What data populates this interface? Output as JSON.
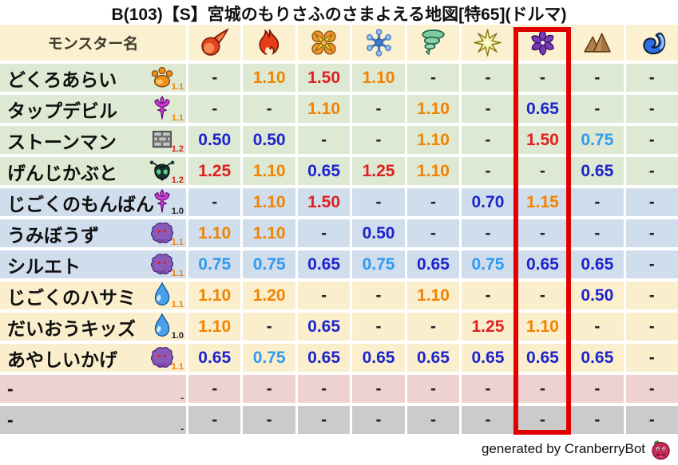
{
  "title": "B(103)【S】宮城のもりさふのさまよえる地図[特65](ドルマ)",
  "chart_data": {
    "type": "table",
    "title": "B(103)【S】宮城のもりさふのさまよえる地図[特65](ドルマ)",
    "header": {
      "monster_col_label": "モンスター名",
      "element_columns": [
        {
          "icon": "fireball-icon"
        },
        {
          "icon": "flame-icon"
        },
        {
          "icon": "burst-icon"
        },
        {
          "icon": "snowflake-icon"
        },
        {
          "icon": "tornado-icon"
        },
        {
          "icon": "starburst-icon"
        },
        {
          "icon": "pinwheel-icon"
        },
        {
          "icon": "mountain-icon"
        },
        {
          "icon": "wave-icon"
        }
      ],
      "highlighted_column_index": 6
    },
    "rows": [
      {
        "name": "どくろあらい",
        "icon": "paw-icon",
        "level": "1.1",
        "level_color": "orange",
        "bg": "green",
        "values": [
          {
            "v": "-",
            "c": "dash"
          },
          {
            "v": "1.10",
            "c": "orange"
          },
          {
            "v": "1.50",
            "c": "red"
          },
          {
            "v": "1.10",
            "c": "orange"
          },
          {
            "v": "-",
            "c": "dash"
          },
          {
            "v": "-",
            "c": "dash"
          },
          {
            "v": "-",
            "c": "dash"
          },
          {
            "v": "-",
            "c": "dash"
          },
          {
            "v": "-",
            "c": "dash"
          }
        ]
      },
      {
        "name": "タップデビル",
        "icon": "trident-icon",
        "level": "1.1",
        "level_color": "orange",
        "bg": "green",
        "values": [
          {
            "v": "-",
            "c": "dash"
          },
          {
            "v": "-",
            "c": "dash"
          },
          {
            "v": "1.10",
            "c": "orange"
          },
          {
            "v": "-",
            "c": "dash"
          },
          {
            "v": "1.10",
            "c": "orange"
          },
          {
            "v": "-",
            "c": "dash"
          },
          {
            "v": "0.65",
            "c": "blue"
          },
          {
            "v": "-",
            "c": "dash"
          },
          {
            "v": "-",
            "c": "dash"
          }
        ]
      },
      {
        "name": "ストーンマン",
        "icon": "brick-icon",
        "level": "1.2",
        "level_color": "red",
        "bg": "green",
        "values": [
          {
            "v": "0.50",
            "c": "blue"
          },
          {
            "v": "0.50",
            "c": "blue"
          },
          {
            "v": "-",
            "c": "dash"
          },
          {
            "v": "-",
            "c": "dash"
          },
          {
            "v": "1.10",
            "c": "orange"
          },
          {
            "v": "-",
            "c": "dash"
          },
          {
            "v": "1.50",
            "c": "red"
          },
          {
            "v": "0.75",
            "c": "lblue"
          },
          {
            "v": "-",
            "c": "dash"
          }
        ]
      },
      {
        "name": "げんじかぶと",
        "icon": "beetle-icon",
        "level": "1.2",
        "level_color": "red",
        "bg": "green",
        "values": [
          {
            "v": "1.25",
            "c": "red"
          },
          {
            "v": "1.10",
            "c": "orange"
          },
          {
            "v": "0.65",
            "c": "blue"
          },
          {
            "v": "1.25",
            "c": "red"
          },
          {
            "v": "1.10",
            "c": "orange"
          },
          {
            "v": "-",
            "c": "dash"
          },
          {
            "v": "-",
            "c": "dash"
          },
          {
            "v": "0.65",
            "c": "blue"
          },
          {
            "v": "-",
            "c": "dash"
          }
        ]
      },
      {
        "name": "じごくのもんばん",
        "icon": "trident-icon",
        "level": "1.0",
        "level_color": "black",
        "bg": "blue",
        "values": [
          {
            "v": "-",
            "c": "dash"
          },
          {
            "v": "1.10",
            "c": "orange"
          },
          {
            "v": "1.50",
            "c": "red"
          },
          {
            "v": "-",
            "c": "dash"
          },
          {
            "v": "-",
            "c": "dash"
          },
          {
            "v": "0.70",
            "c": "blue"
          },
          {
            "v": "1.15",
            "c": "orange"
          },
          {
            "v": "-",
            "c": "dash"
          },
          {
            "v": "-",
            "c": "dash"
          }
        ]
      },
      {
        "name": "うみぼうず",
        "icon": "ghost-icon",
        "level": "1.1",
        "level_color": "orange",
        "bg": "blue",
        "values": [
          {
            "v": "1.10",
            "c": "orange"
          },
          {
            "v": "1.10",
            "c": "orange"
          },
          {
            "v": "-",
            "c": "dash"
          },
          {
            "v": "0.50",
            "c": "blue"
          },
          {
            "v": "-",
            "c": "dash"
          },
          {
            "v": "-",
            "c": "dash"
          },
          {
            "v": "-",
            "c": "dash"
          },
          {
            "v": "-",
            "c": "dash"
          },
          {
            "v": "-",
            "c": "dash"
          }
        ]
      },
      {
        "name": "シルエト",
        "icon": "ghost-icon",
        "level": "1.1",
        "level_color": "orange",
        "bg": "blue",
        "values": [
          {
            "v": "0.75",
            "c": "lblue"
          },
          {
            "v": "0.75",
            "c": "lblue"
          },
          {
            "v": "0.65",
            "c": "blue"
          },
          {
            "v": "0.75",
            "c": "lblue"
          },
          {
            "v": "0.65",
            "c": "blue"
          },
          {
            "v": "0.75",
            "c": "lblue"
          },
          {
            "v": "0.65",
            "c": "blue"
          },
          {
            "v": "0.65",
            "c": "blue"
          },
          {
            "v": "-",
            "c": "dash"
          }
        ]
      },
      {
        "name": "じごくのハサミ",
        "icon": "waterdrop-icon",
        "level": "1.1",
        "level_color": "orange",
        "bg": "cream",
        "values": [
          {
            "v": "1.10",
            "c": "orange"
          },
          {
            "v": "1.20",
            "c": "orange"
          },
          {
            "v": "-",
            "c": "dash"
          },
          {
            "v": "-",
            "c": "dash"
          },
          {
            "v": "1.10",
            "c": "orange"
          },
          {
            "v": "-",
            "c": "dash"
          },
          {
            "v": "-",
            "c": "dash"
          },
          {
            "v": "0.50",
            "c": "blue"
          },
          {
            "v": "-",
            "c": "dash"
          }
        ]
      },
      {
        "name": "だいおうキッズ",
        "icon": "waterdrop-icon",
        "level": "1.0",
        "level_color": "black",
        "bg": "cream",
        "values": [
          {
            "v": "1.10",
            "c": "orange"
          },
          {
            "v": "-",
            "c": "dash"
          },
          {
            "v": "0.65",
            "c": "blue"
          },
          {
            "v": "-",
            "c": "dash"
          },
          {
            "v": "-",
            "c": "dash"
          },
          {
            "v": "1.25",
            "c": "red"
          },
          {
            "v": "1.10",
            "c": "orange"
          },
          {
            "v": "-",
            "c": "dash"
          },
          {
            "v": "-",
            "c": "dash"
          }
        ]
      },
      {
        "name": "あやしいかげ",
        "icon": "ghost-icon",
        "level": "1.1",
        "level_color": "orange",
        "bg": "cream",
        "values": [
          {
            "v": "0.65",
            "c": "blue"
          },
          {
            "v": "0.75",
            "c": "lblue"
          },
          {
            "v": "0.65",
            "c": "blue"
          },
          {
            "v": "0.65",
            "c": "blue"
          },
          {
            "v": "0.65",
            "c": "blue"
          },
          {
            "v": "0.65",
            "c": "blue"
          },
          {
            "v": "0.65",
            "c": "blue"
          },
          {
            "v": "0.65",
            "c": "blue"
          },
          {
            "v": "-",
            "c": "dash"
          }
        ]
      },
      {
        "name": "-",
        "icon": "none",
        "level": "-",
        "level_color": "black",
        "bg": "pink",
        "values": [
          {
            "v": "-",
            "c": "dash"
          },
          {
            "v": "-",
            "c": "dash"
          },
          {
            "v": "-",
            "c": "dash"
          },
          {
            "v": "-",
            "c": "dash"
          },
          {
            "v": "-",
            "c": "dash"
          },
          {
            "v": "-",
            "c": "dash"
          },
          {
            "v": "-",
            "c": "dash"
          },
          {
            "v": "-",
            "c": "dash"
          },
          {
            "v": "-",
            "c": "dash"
          }
        ]
      },
      {
        "name": "-",
        "icon": "none",
        "level": "-",
        "level_color": "black",
        "bg": "gray",
        "values": [
          {
            "v": "-",
            "c": "dash"
          },
          {
            "v": "-",
            "c": "dash"
          },
          {
            "v": "-",
            "c": "dash"
          },
          {
            "v": "-",
            "c": "dash"
          },
          {
            "v": "-",
            "c": "dash"
          },
          {
            "v": "-",
            "c": "dash"
          },
          {
            "v": "-",
            "c": "dash"
          },
          {
            "v": "-",
            "c": "dash"
          },
          {
            "v": "-",
            "c": "dash"
          }
        ]
      }
    ]
  },
  "palette": {
    "value_strong_weak": "#e02020",
    "value_weak": "#f28300",
    "value_resist": "#1c24cc",
    "value_resist_light": "#2f9bf0",
    "value_none": "#222222",
    "highlight_box": "#e10000",
    "header_bg": "#fbf0cf",
    "row_green": "#dde9d3",
    "row_blue": "#cfddec",
    "row_cream": "#fbeecd",
    "row_pink": "#eed2d2",
    "row_gray": "#cbcbcb"
  },
  "footer": {
    "credit": "generated by CranberryBot",
    "icon": "cranberry-icon"
  }
}
